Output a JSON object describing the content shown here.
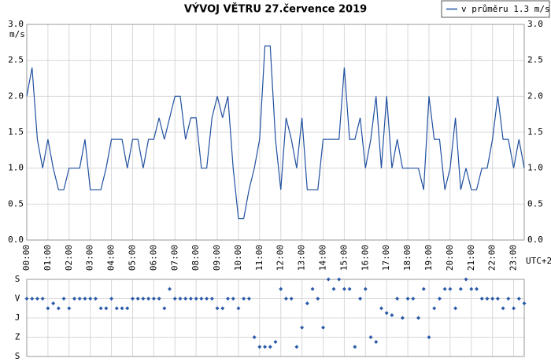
{
  "chart_data": [
    {
      "type": "line",
      "title": "VÝVOJ VĚTRU  27.července 2019",
      "y_unit": "m/s",
      "x_note": "UTC+2",
      "legend": "top-right",
      "grid": true,
      "x": [
        0,
        15,
        30,
        45,
        60,
        75,
        90,
        105,
        120,
        135,
        150,
        165,
        180,
        195,
        210,
        225,
        240,
        255,
        270,
        285,
        300,
        315,
        330,
        345,
        360,
        375,
        390,
        405,
        420,
        435,
        450,
        465,
        480,
        495,
        510,
        525,
        540,
        555,
        570,
        585,
        600,
        615,
        630,
        645,
        660,
        675,
        690,
        705,
        720,
        735,
        750,
        765,
        780,
        795,
        810,
        825,
        840,
        855,
        870,
        885,
        900,
        915,
        930,
        945,
        960,
        975,
        990,
        1005,
        1020,
        1035,
        1050,
        1065,
        1080,
        1095,
        1110,
        1125,
        1140,
        1155,
        1170,
        1185,
        1200,
        1215,
        1230,
        1245,
        1260,
        1275,
        1290,
        1305,
        1320,
        1335,
        1350,
        1365,
        1380,
        1395,
        1410
      ],
      "xlim": [
        0,
        1410
      ],
      "xticks": [
        {
          "value": 0,
          "label": "00:00"
        },
        {
          "value": 60,
          "label": "01:00"
        },
        {
          "value": 120,
          "label": "02:00"
        },
        {
          "value": 180,
          "label": "03:00"
        },
        {
          "value": 240,
          "label": "04:00"
        },
        {
          "value": 300,
          "label": "05:00"
        },
        {
          "value": 360,
          "label": "06:00"
        },
        {
          "value": 420,
          "label": "07:00"
        },
        {
          "value": 480,
          "label": "08:00"
        },
        {
          "value": 540,
          "label": "09:00"
        },
        {
          "value": 600,
          "label": "10:00"
        },
        {
          "value": 660,
          "label": "11:00"
        },
        {
          "value": 720,
          "label": "12:00"
        },
        {
          "value": 780,
          "label": "13:00"
        },
        {
          "value": 840,
          "label": "14:00"
        },
        {
          "value": 900,
          "label": "15:00"
        },
        {
          "value": 960,
          "label": "16:00"
        },
        {
          "value": 1020,
          "label": "17:00"
        },
        {
          "value": 1080,
          "label": "18:00"
        },
        {
          "value": 1140,
          "label": "19:00"
        },
        {
          "value": 1200,
          "label": "20:00"
        },
        {
          "value": 1260,
          "label": "21:00"
        },
        {
          "value": 1320,
          "label": "22:00"
        },
        {
          "value": 1380,
          "label": "23:00"
        }
      ],
      "ylim": [
        0,
        3
      ],
      "yticks": [
        {
          "value": 0,
          "label": "0.0"
        },
        {
          "value": 0.5,
          "label": "0.5"
        },
        {
          "value": 1,
          "label": "1.0"
        },
        {
          "value": 1.5,
          "label": "1.5"
        },
        {
          "value": 2,
          "label": "2.0"
        },
        {
          "value": 2.5,
          "label": "2.5"
        },
        {
          "value": 3,
          "label": "3.0"
        }
      ],
      "series": [
        {
          "name": "v průměru 1.3 m/s",
          "color": "#2050a0",
          "values": [
            2.0,
            2.4,
            1.4,
            1.0,
            1.4,
            1.0,
            0.7,
            0.7,
            1.0,
            1.0,
            1.0,
            1.4,
            0.7,
            0.7,
            0.7,
            1.0,
            1.4,
            1.4,
            1.4,
            1.0,
            1.4,
            1.4,
            1.0,
            1.4,
            1.4,
            1.7,
            1.4,
            1.7,
            2.0,
            2.0,
            1.4,
            1.7,
            1.7,
            1.0,
            1.0,
            1.7,
            2.0,
            1.7,
            2.0,
            1.0,
            0.3,
            0.3,
            0.7,
            1.0,
            1.4,
            2.7,
            2.7,
            1.4,
            0.7,
            1.7,
            1.4,
            1.0,
            1.7,
            0.7,
            0.7,
            0.7,
            1.4,
            1.4,
            1.4,
            1.4,
            2.4,
            1.4,
            1.4,
            1.7,
            1.0,
            1.4,
            2.0,
            1.0,
            2.0,
            1.0,
            1.4,
            1.0,
            1.0,
            1.0,
            1.0,
            0.7,
            2.0,
            1.4,
            1.4,
            0.7,
            1.0,
            1.7,
            0.7,
            1.0,
            0.7,
            0.7,
            1.0,
            1.0,
            1.4,
            2.0,
            1.4,
            1.4,
            1.0,
            1.4,
            1.0
          ]
        }
      ]
    },
    {
      "type": "scatter",
      "color": "#2a5aa8",
      "x": [
        0,
        15,
        30,
        45,
        60,
        75,
        90,
        105,
        120,
        135,
        150,
        165,
        180,
        195,
        210,
        225,
        240,
        255,
        270,
        285,
        300,
        315,
        330,
        345,
        360,
        375,
        390,
        405,
        420,
        435,
        450,
        465,
        480,
        495,
        510,
        525,
        540,
        555,
        570,
        585,
        600,
        615,
        630,
        645,
        660,
        675,
        690,
        705,
        720,
        735,
        750,
        765,
        780,
        795,
        810,
        825,
        840,
        855,
        870,
        885,
        900,
        915,
        930,
        945,
        960,
        975,
        990,
        1005,
        1020,
        1035,
        1050,
        1065,
        1080,
        1095,
        1110,
        1125,
        1140,
        1155,
        1170,
        1185,
        1200,
        1215,
        1230,
        1245,
        1260,
        1275,
        1290,
        1305,
        1320,
        1335,
        1350,
        1365,
        1380,
        1395,
        1410
      ],
      "xlim": [
        0,
        1410
      ],
      "values": [
        90,
        90,
        90,
        90,
        135,
        112,
        135,
        90,
        135,
        90,
        90,
        90,
        90,
        90,
        135,
        135,
        90,
        135,
        135,
        135,
        90,
        90,
        90,
        90,
        90,
        90,
        135,
        45,
        90,
        90,
        90,
        90,
        90,
        90,
        90,
        90,
        135,
        135,
        90,
        90,
        135,
        90,
        90,
        270,
        315,
        315,
        315,
        292,
        45,
        90,
        90,
        315,
        225,
        112,
        45,
        90,
        225,
        0,
        45,
        0,
        45,
        45,
        315,
        90,
        45,
        270,
        292,
        135,
        157,
        167,
        90,
        180,
        90,
        90,
        180,
        45,
        270,
        135,
        90,
        45,
        45,
        135,
        45,
        0,
        45,
        45,
        90,
        90,
        90,
        90,
        135,
        90,
        135,
        90,
        112
      ],
      "ylim": [
        360,
        0
      ],
      "yticks": [
        {
          "value": 0,
          "label": "S"
        },
        {
          "value": 90,
          "label": "V"
        },
        {
          "value": 180,
          "label": "J"
        },
        {
          "value": 270,
          "label": "Z"
        },
        {
          "value": 360,
          "label": "S"
        }
      ]
    }
  ]
}
